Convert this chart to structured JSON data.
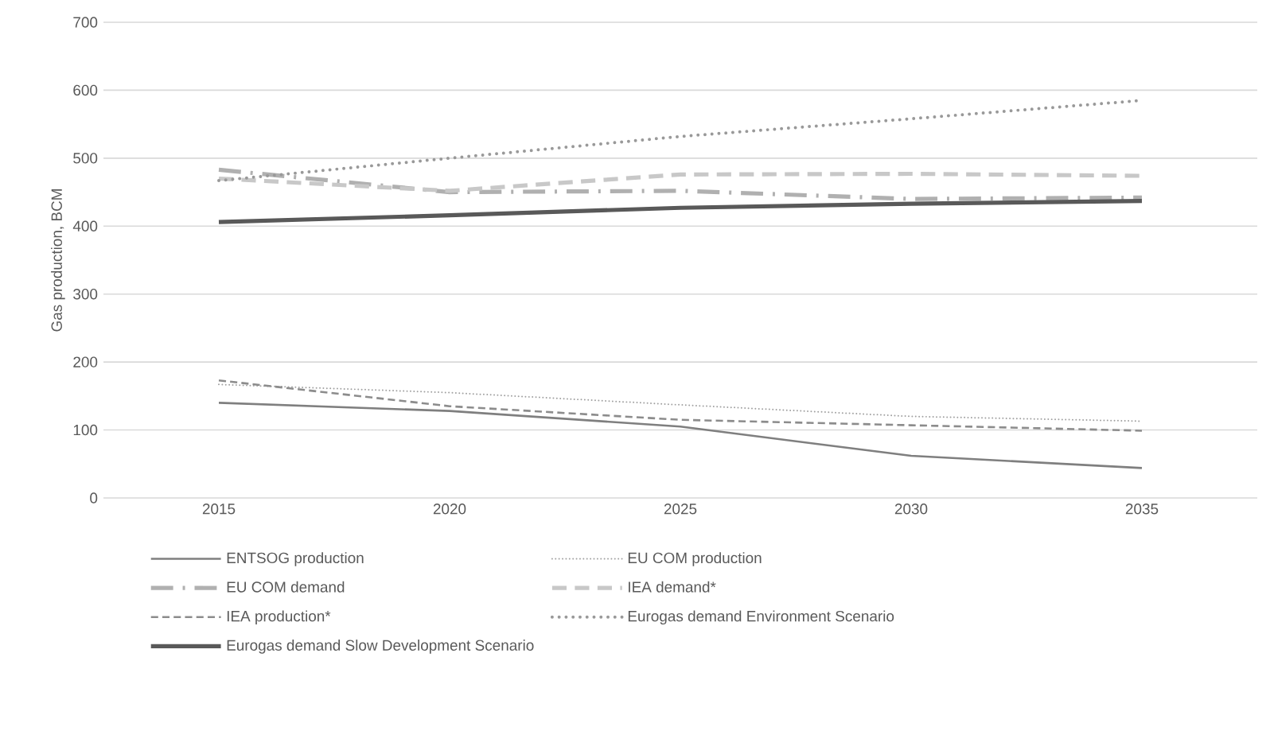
{
  "chart_data": {
    "type": "line",
    "ylabel": "Gas production, BCM",
    "categories": [
      "2015",
      "2020",
      "2025",
      "2030",
      "2035"
    ],
    "ylim": [
      0,
      700
    ],
    "yticks": [
      0,
      100,
      200,
      300,
      400,
      500,
      600,
      700
    ],
    "grid": "y",
    "legend": "bottom",
    "series": [
      {
        "name": "ENTSOG production",
        "color": "#7f7f7f",
        "line_style": "solid",
        "values": [
          140,
          128,
          105,
          62,
          44
        ]
      },
      {
        "name": "EU COM production",
        "color": "#a0a0a0",
        "line_style": "dotted",
        "values": [
          167,
          155,
          137,
          120,
          113
        ]
      },
      {
        "name": "EU COM demand",
        "color": "#b0b0b0",
        "line_style": "dashdot",
        "values": [
          483,
          450,
          452,
          440,
          442
        ]
      },
      {
        "name": "IEA demand*",
        "color": "#c8c8c8",
        "line_style": "dashed",
        "values": [
          470,
          452,
          476,
          477,
          474
        ]
      },
      {
        "name": "IEA production*",
        "color": "#8c8c8c",
        "line_style": "dashed",
        "values": [
          173,
          135,
          115,
          107,
          99
        ]
      },
      {
        "name": "Eurogas demand Environment Scenario",
        "color": "#999999",
        "line_style": "dotted",
        "values": [
          467,
          500,
          532,
          558,
          585
        ]
      },
      {
        "name": "Eurogas demand Slow Development Scenario",
        "color": "#595959",
        "line_style": "solid",
        "values": [
          406,
          416,
          427,
          433,
          437
        ]
      }
    ]
  }
}
